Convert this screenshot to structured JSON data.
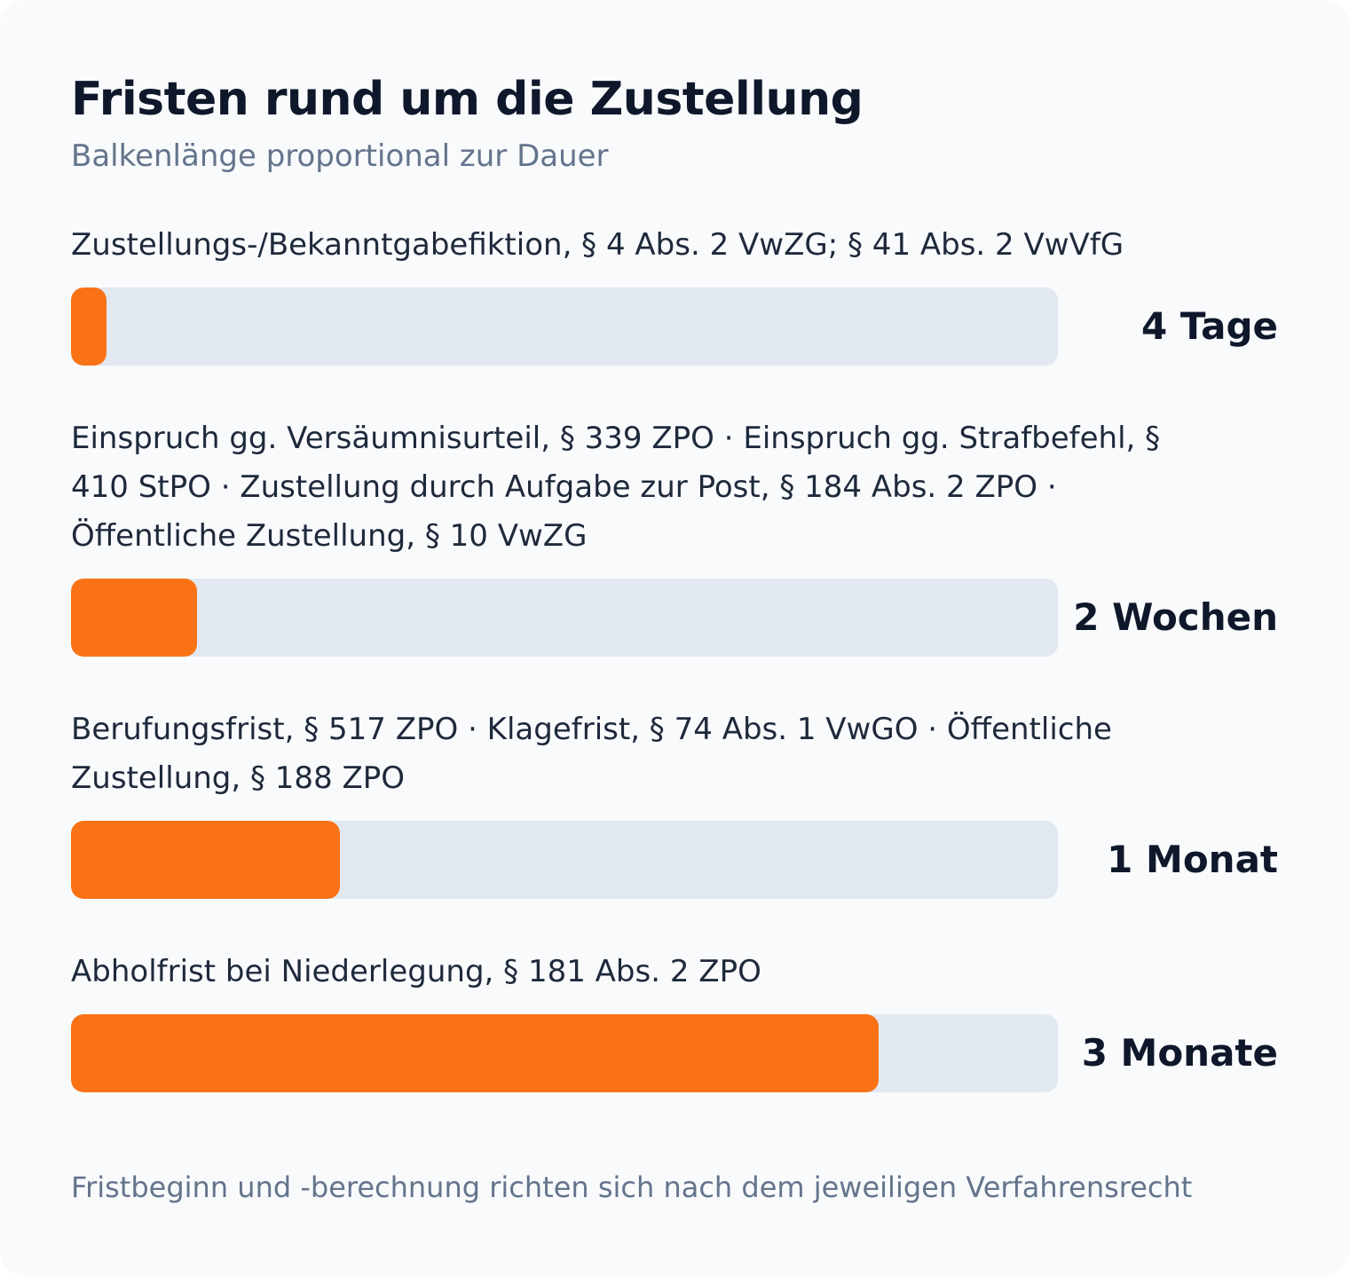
{
  "chart_data": {
    "type": "bar",
    "orientation": "horizontal",
    "title": "Fristen rund um die Zustellung",
    "subtitle": "Balkenlänge proportional zur Dauer",
    "categories": [
      "Zustellungs-/Bekanntgabefiktion, § 4 Abs. 2 VwZG; § 41 Abs. 2 VwVfG",
      "Einspruch gg. Versäumnisurteil, § 339 ZPO · Einspruch gg. Strafbefehl, § 410 StPO · Zustellung durch Aufgabe zur Post, § 184 Abs. 2 ZPO · Öffentliche Zustellung, § 10 VwZG",
      "Berufungsfrist, § 517 ZPO · Klagefrist, § 74 Abs. 1 VwGO · Öffentliche Zustellung, § 188 ZPO",
      "Abholfrist bei Niederlegung, § 181 Abs. 2 ZPO"
    ],
    "value_labels": [
      "4 Tage",
      "2 Wochen",
      "1 Monat",
      "3 Monate"
    ],
    "values_days": [
      4,
      14,
      30,
      90
    ],
    "xlim_days": [
      0,
      110
    ],
    "bar_color": "#f97316",
    "track_color": "#e2e8f0",
    "footnote": "Fristbeginn und -berechnung richten sich nach dem jeweiligen Verfahrensrecht"
  }
}
